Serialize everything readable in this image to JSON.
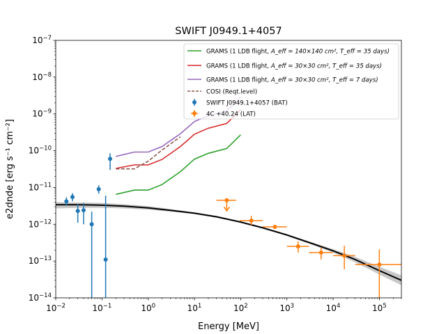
{
  "chart_data": {
    "type": "scatter",
    "title": "SWIFT J0949.1+4057",
    "xlabel": "Energy [MeV]",
    "ylabel": "e2dnde [erg s⁻¹ cm⁻²]",
    "xscale": "log",
    "yscale": "log",
    "xlim": [
      0.01,
      300000
    ],
    "ylim": [
      1e-14,
      1e-07
    ],
    "xtick_labels": [
      {
        "value": 0.01,
        "base": "10",
        "exp": "−2"
      },
      {
        "value": 0.1,
        "base": "10",
        "exp": "−1"
      },
      {
        "value": 1,
        "base": "10",
        "exp": "0"
      },
      {
        "value": 10,
        "base": "10",
        "exp": "1"
      },
      {
        "value": 100,
        "base": "10",
        "exp": "2"
      },
      {
        "value": 1000,
        "base": "10",
        "exp": "3"
      },
      {
        "value": 10000,
        "base": "10",
        "exp": "4"
      },
      {
        "value": 100000,
        "base": "10",
        "exp": "5"
      }
    ],
    "ytick_labels": [
      {
        "value": 1e-14,
        "base": "10",
        "exp": "−14"
      },
      {
        "value": 1e-13,
        "base": "10",
        "exp": "−13"
      },
      {
        "value": 1e-12,
        "base": "10",
        "exp": "−12"
      },
      {
        "value": 1e-11,
        "base": "10",
        "exp": "−11"
      },
      {
        "value": 1e-10,
        "base": "10",
        "exp": "−10"
      },
      {
        "value": 1e-09,
        "base": "10",
        "exp": "−9"
      },
      {
        "value": 1e-08,
        "base": "10",
        "exp": "−8"
      },
      {
        "value": 1e-07,
        "base": "10",
        "exp": "−7"
      }
    ],
    "legend_position": "top-right",
    "series": [
      {
        "name": "GRAMS (1 LDB flight, A_eff = 140×140 cm², T_eff = 35 days)",
        "legend_main": "GRAMS (1 LDB flight, ",
        "legend_math": "A_eff = 140×140 cm², T_eff = 35 days)",
        "kind": "line",
        "color": "#2ca02c",
        "dash": "solid",
        "x": [
          0.2,
          0.5,
          1,
          2,
          5,
          10,
          20,
          50,
          100
        ],
        "y": [
          6.5e-12,
          8.5e-12,
          8.5e-12,
          1.2e-11,
          2.7e-11,
          5.9e-11,
          8.5e-11,
          1.15e-10,
          2.7e-10
        ]
      },
      {
        "name": "GRAMS (1 LDB flight, A_eff = 30×30 cm², T_eff = 35 days)",
        "legend_main": "GRAMS (1 LDB flight, ",
        "legend_math": "A_eff = 30×30 cm², T_eff = 35 days)",
        "kind": "line",
        "color": "#d62728",
        "dash": "solid",
        "x": [
          0.2,
          0.5,
          1,
          2,
          5,
          10,
          20,
          50,
          100
        ],
        "y": [
          3.3e-11,
          4.1e-11,
          4.1e-11,
          5.8e-11,
          1.3e-10,
          2.8e-10,
          4.1e-10,
          5.5e-10,
          1.3e-09
        ]
      },
      {
        "name": "GRAMS (1 LDB flight, A_eff = 30×30 cm², T_eff = 7 days)",
        "legend_main": "GRAMS (1 LDB flight, ",
        "legend_math": "A_eff = 30×30 cm², T_eff = 7 days)",
        "kind": "line",
        "color": "#9467bd",
        "dash": "solid",
        "x": [
          0.2,
          0.5,
          1,
          2,
          5,
          10,
          20,
          50,
          100
        ],
        "y": [
          7e-11,
          9.2e-11,
          9.2e-11,
          1.3e-10,
          2.9e-10,
          6.2e-10,
          9e-10,
          1.2e-09,
          2.9e-09
        ]
      },
      {
        "name": "COSI (Reqt.level)",
        "kind": "line",
        "color": "#8c564b",
        "dash": "dashed",
        "x": [
          0.2,
          0.5,
          1,
          2,
          5
        ],
        "y": [
          3.2e-11,
          3.2e-11,
          5.2e-11,
          1.05e-10,
          2.4e-10
        ]
      },
      {
        "name": "SWIFT J0949.1+4057 (BAT)",
        "kind": "errorbar",
        "color": "#1f77b4",
        "points": [
          {
            "x": 0.017,
            "y": 4.2e-12,
            "yerr_lo": 3.2e-12,
            "yerr_hi": 5.4e-12
          },
          {
            "x": 0.023,
            "y": 5.5e-12,
            "yerr_lo": 4.2e-12,
            "yerr_hi": 7e-12
          },
          {
            "x": 0.03,
            "y": 2.3e-12,
            "yerr_lo": 1.1e-12,
            "yerr_hi": 3.5e-12
          },
          {
            "x": 0.04,
            "y": 2.4e-12,
            "yerr_lo": 1e-12,
            "yerr_hi": 3.8e-12
          },
          {
            "x": 0.06,
            "y": 1e-12,
            "yerr_lo": 1e-14,
            "yerr_hi": 2.2e-12
          },
          {
            "x": 0.085,
            "y": 9e-12,
            "yerr_lo": 6.8e-12,
            "yerr_hi": 1.15e-11
          },
          {
            "x": 0.12,
            "y": 1.1e-13,
            "yerr_lo": 1e-14,
            "yerr_hi": 6e-12
          },
          {
            "x": 0.15,
            "y": 6e-11,
            "yerr_lo": 3e-11,
            "yerr_hi": 8.5e-11
          }
        ]
      },
      {
        "name": "4C +40.24 (LAT)",
        "kind": "errorbar",
        "color": "#ff7f0e",
        "points": [
          {
            "x": 50,
            "y": 4.5e-12,
            "xerr_lo": 30,
            "xerr_hi": 80,
            "upper_limit": true,
            "arrow_to": 2.3e-12
          },
          {
            "x": 170,
            "y": 1.25e-12,
            "xerr_lo": 95,
            "xerr_hi": 300,
            "yerr_lo": 9.5e-13,
            "yerr_hi": 1.7e-12
          },
          {
            "x": 550,
            "y": 8.5e-13,
            "xerr_lo": 300,
            "xerr_hi": 1000,
            "yerr_lo": 7.5e-13,
            "yerr_hi": 9.6e-13
          },
          {
            "x": 1750,
            "y": 2.5e-13,
            "xerr_lo": 1000,
            "xerr_hi": 3000,
            "yerr_lo": 1.7e-13,
            "yerr_hi": 3.4e-13
          },
          {
            "x": 5500,
            "y": 1.7e-13,
            "xerr_lo": 3000,
            "xerr_hi": 10000,
            "yerr_lo": 1.1e-13,
            "yerr_hi": 2.3e-13
          },
          {
            "x": 17500,
            "y": 1.4e-13,
            "xerr_lo": 10000,
            "xerr_hi": 30000,
            "yerr_lo": 6e-14,
            "yerr_hi": 2.6e-13
          },
          {
            "x": 100000,
            "y": 8e-14,
            "xerr_lo": 30000,
            "xerr_hi": 300000,
            "yerr_lo": 1e-14,
            "yerr_hi": 2.1e-13
          }
        ]
      }
    ],
    "model": {
      "color": "#000000",
      "band_color": "#c8c8c8",
      "x": [
        0.01,
        0.03,
        0.1,
        0.3,
        1,
        3,
        10,
        30,
        100,
        300,
        1000,
        3000,
        10000,
        30000,
        100000,
        300000
      ],
      "y": [
        3.4e-12,
        3.4e-12,
        3.3e-12,
        3.1e-12,
        2.8e-12,
        2.4e-12,
        2e-12,
        1.6e-12,
        1.15e-12,
        8e-13,
        5.1e-13,
        3.2e-13,
        1.9e-13,
        1.1e-13,
        5.5e-14,
        3e-14
      ],
      "band_lo": [
        2.7e-12,
        2.8e-12,
        2.8e-12,
        2.7e-12,
        2.5e-12,
        2.2e-12,
        1.9e-12,
        1.5e-12,
        1.1e-12,
        7.6e-13,
        4.8e-13,
        2.95e-13,
        1.7e-13,
        9.2e-14,
        4.3e-14,
        2.2e-14
      ],
      "band_hi": [
        4e-12,
        3.9e-12,
        3.8e-12,
        3.5e-12,
        3.1e-12,
        2.6e-12,
        2.1e-12,
        1.65e-12,
        1.2e-12,
        8.4e-13,
        5.4e-13,
        3.45e-13,
        2.1e-13,
        1.3e-13,
        7e-14,
        4.1e-14
      ]
    }
  }
}
